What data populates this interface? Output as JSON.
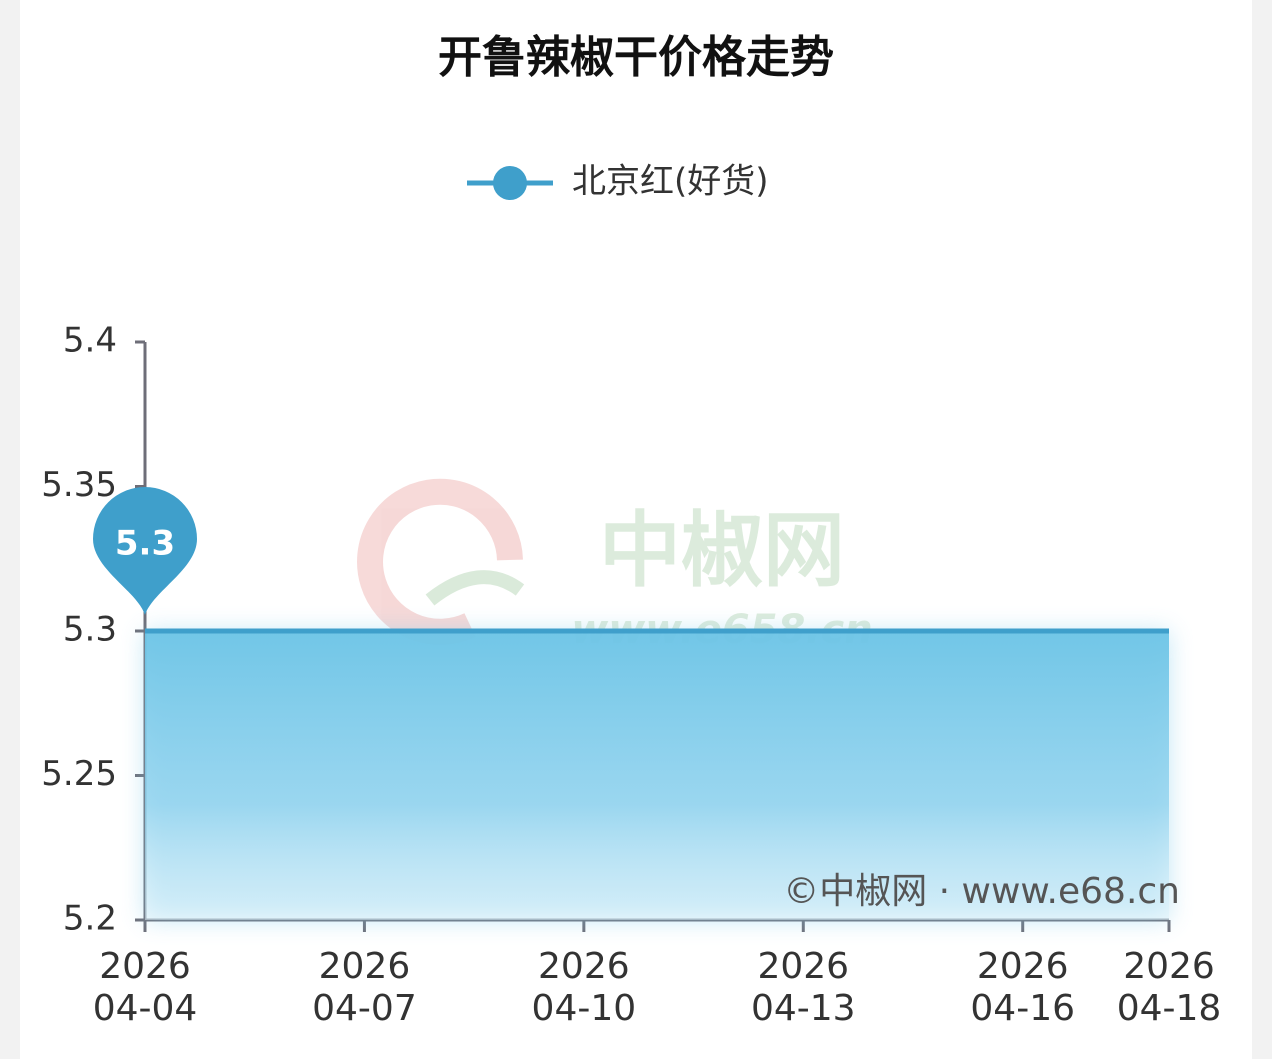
{
  "chart_data": {
    "type": "line",
    "title": "开鲁辣椒干价格走势",
    "watermark": {
      "name": "中椒网",
      "url": "www.e658.cn"
    },
    "source": "©中椒网 · www.e68.cn",
    "legend_position": "top",
    "x": [
      "2026-04-04",
      "2026-04-05",
      "2026-04-06",
      "2026-04-07",
      "2026-04-08",
      "2026-04-09",
      "2026-04-10",
      "2026-04-11",
      "2026-04-12",
      "2026-04-13",
      "2026-04-14",
      "2026-04-15",
      "2026-04-16",
      "2026-04-17",
      "2026-04-18"
    ],
    "series": [
      {
        "name": "北京红(好货)",
        "color": "#3f9fcb",
        "values": [
          5.3,
          5.3,
          5.3,
          5.3,
          5.3,
          5.3,
          5.3,
          5.3,
          5.3,
          5.3,
          5.3,
          5.3,
          5.3,
          5.3,
          5.3
        ]
      }
    ],
    "xlim": [
      "2026-04-04",
      "2026-04-18"
    ],
    "xticks": [
      {
        "value": "2026-04-04",
        "label": [
          "2026",
          "04-04"
        ]
      },
      {
        "value": "2026-04-07",
        "label": [
          "2026",
          "04-07"
        ]
      },
      {
        "value": "2026-04-10",
        "label": [
          "2026",
          "04-10"
        ]
      },
      {
        "value": "2026-04-13",
        "label": [
          "2026",
          "04-13"
        ]
      },
      {
        "value": "2026-04-16",
        "label": [
          "2026",
          "04-16"
        ]
      },
      {
        "value": "2026-04-18",
        "label": [
          "2026",
          "04-18"
        ]
      }
    ],
    "ylim": [
      5.2,
      5.4
    ],
    "yticks": [
      5.2,
      5.25,
      5.3,
      5.35,
      5.4
    ],
    "grid": false
  }
}
